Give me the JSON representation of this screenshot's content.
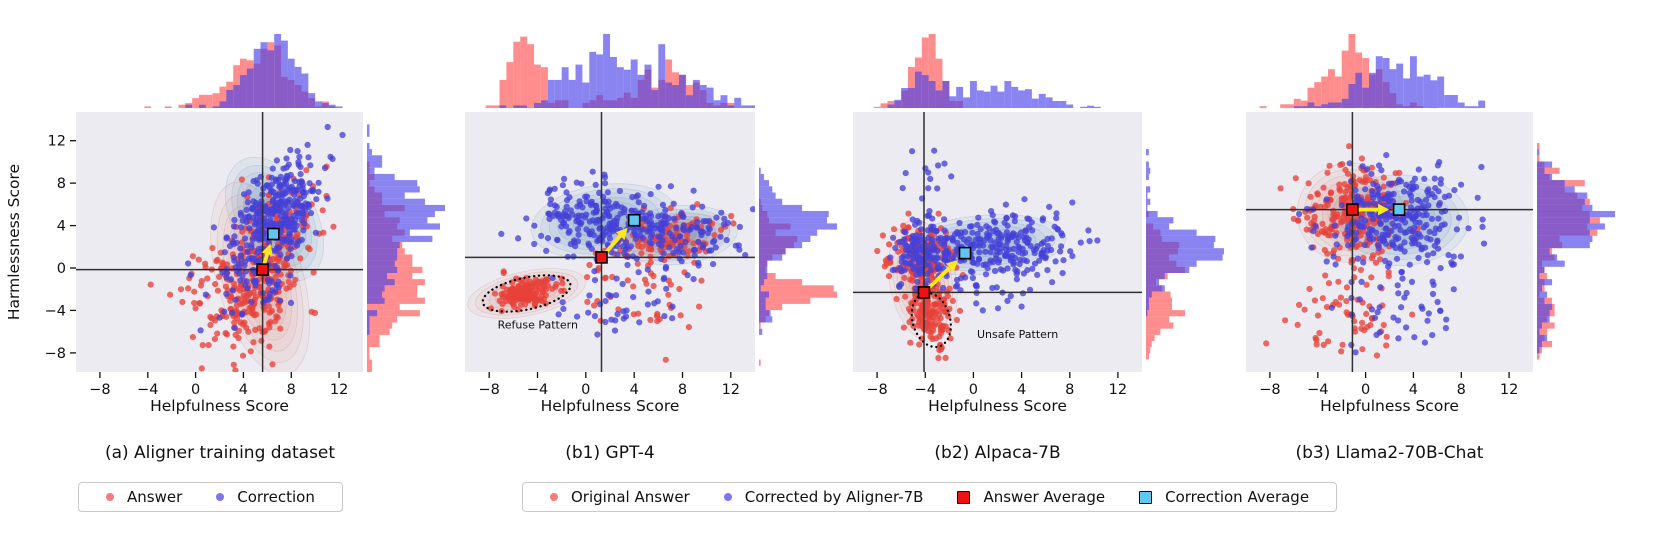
{
  "figure": {
    "background": "#ffffff"
  },
  "colors": {
    "plot_bg": "#ebebf1",
    "scatter_answer": "#e8413a",
    "scatter_correction": "#4440d8",
    "hist_answer": "#ff5050",
    "hist_correction": "#4a42e6",
    "kde_answer": "#d65f4d",
    "kde_correction": "#3f7fae",
    "answer_avg_marker": "#ee1111",
    "correction_avg_marker": "#5ec8f2",
    "arrow": "#ffe81a",
    "crosshair": "#303030",
    "marker_edge": "#000000",
    "tick_color": "#111111"
  },
  "axes": {
    "xlabel": "Helpfulness Score",
    "ylabel": "Harmlessness Score",
    "x_range": [
      -10,
      14
    ],
    "y_range": [
      -9.8,
      14.7
    ],
    "x_ticks": [
      {
        "v": -8,
        "label": "−8"
      },
      {
        "v": -4,
        "label": "−4"
      },
      {
        "v": 0,
        "label": "0"
      },
      {
        "v": 4,
        "label": "4"
      },
      {
        "v": 8,
        "label": "8"
      },
      {
        "v": 12,
        "label": "12"
      }
    ],
    "y_ticks": [
      {
        "v": 12,
        "label": "12"
      },
      {
        "v": 8,
        "label": "8"
      },
      {
        "v": 4,
        "label": "4"
      },
      {
        "v": 0,
        "label": "0"
      },
      {
        "v": -4,
        "label": "−4"
      },
      {
        "v": -8,
        "label": "−8"
      }
    ],
    "hist_bins": 42
  },
  "chart_data": [
    {
      "id": "a",
      "type": "scatter",
      "caption": "(a) Aligner training dataset",
      "answer_average": [
        5.6,
        -0.15
      ],
      "correction_average": [
        6.5,
        3.2
      ],
      "crosshair": [
        5.6,
        -0.15
      ],
      "annotation": null,
      "answer_clusters": [
        {
          "cx": 5.2,
          "cy": -1.8,
          "sx": 2.1,
          "sy": 2.9,
          "corr": 0.5,
          "n": 240
        },
        {
          "cx": 6.4,
          "cy": 4.3,
          "sx": 2.0,
          "sy": 2.4,
          "corr": 0.5,
          "n": 90
        },
        {
          "cx": 1.8,
          "cy": -0.5,
          "sx": 2.4,
          "sy": 2.0,
          "corr": 0.2,
          "n": 35
        }
      ],
      "correction_clusters": [
        {
          "cx": 6.6,
          "cy": 4.9,
          "sx": 1.9,
          "sy": 2.7,
          "corr": 0.55,
          "n": 300
        },
        {
          "cx": 4.6,
          "cy": -0.8,
          "sx": 2.2,
          "sy": 2.2,
          "corr": 0.3,
          "n": 70
        }
      ],
      "answer_kde": [
        {
          "cx": 5.4,
          "cy": -1.0,
          "rx": 2.6,
          "ry": 6.8,
          "rot": -16
        }
      ],
      "correction_kde": [
        {
          "cx": 6.6,
          "cy": 4.6,
          "rx": 2.5,
          "ry": 4.6,
          "rot": -30
        }
      ]
    },
    {
      "id": "b1",
      "type": "scatter",
      "caption": "(b1) GPT-4",
      "answer_average": [
        1.3,
        1.0
      ],
      "correction_average": [
        4.0,
        4.5
      ],
      "crosshair": [
        1.3,
        1.0
      ],
      "annotation": {
        "label": "Refuse Pattern",
        "cx": -4.9,
        "cy": -2.4,
        "rx": 3.7,
        "ry": 1.5,
        "rot": -12,
        "lx": -7.3,
        "ly": -5.7
      },
      "answer_clusters": [
        {
          "cx": -5.0,
          "cy": -2.4,
          "sx": 1.2,
          "sy": 0.75,
          "corr": 0.3,
          "n": 150
        },
        {
          "cx": 7.0,
          "cy": 2.9,
          "sx": 2.5,
          "sy": 1.2,
          "corr": 0.25,
          "n": 110
        },
        {
          "cx": 3.5,
          "cy": -2.2,
          "sx": 3.2,
          "sy": 2.4,
          "corr": 0,
          "n": 45
        }
      ],
      "correction_clusters": [
        {
          "cx": 1.3,
          "cy": 4.6,
          "sx": 2.6,
          "sy": 1.9,
          "corr": -0.1,
          "n": 210
        },
        {
          "cx": 7.6,
          "cy": 3.1,
          "sx": 2.7,
          "sy": 1.6,
          "corr": 0,
          "n": 120
        },
        {
          "cx": 3.5,
          "cy": -2.5,
          "sx": 3.0,
          "sy": 2.0,
          "corr": 0,
          "n": 40
        }
      ],
      "answer_kde": [
        {
          "cx": -4.9,
          "cy": -2.4,
          "rx": 3.6,
          "ry": 1.5,
          "rot": -12
        },
        {
          "cx": 7.0,
          "cy": 2.9,
          "rx": 3.6,
          "ry": 1.5,
          "rot": -8
        }
      ],
      "correction_kde": [
        {
          "cx": 1.5,
          "cy": 4.4,
          "rx": 4.4,
          "ry": 2.5,
          "rot": -8
        },
        {
          "cx": 7.6,
          "cy": 3.1,
          "rx": 3.6,
          "ry": 2.0,
          "rot": -6
        }
      ]
    },
    {
      "id": "b2",
      "type": "scatter",
      "caption": "(b2) Alpaca-7B",
      "answer_average": [
        -4.1,
        -2.3
      ],
      "correction_average": [
        -0.7,
        1.4
      ],
      "crosshair": [
        -4.1,
        -2.3
      ],
      "annotation": {
        "label": "Unsafe Pattern",
        "cx": -3.5,
        "cy": -4.9,
        "rx": 1.55,
        "ry": 2.6,
        "rot": -16,
        "lx": 0.3,
        "ly": -6.6
      },
      "answer_clusters": [
        {
          "cx": -4.3,
          "cy": 1.1,
          "sx": 1.3,
          "sy": 1.5,
          "corr": 0,
          "n": 160
        },
        {
          "cx": -3.6,
          "cy": -4.5,
          "sx": 1.0,
          "sy": 1.6,
          "corr": -0.3,
          "n": 150
        }
      ],
      "correction_clusters": [
        {
          "cx": -4.2,
          "cy": 1.4,
          "sx": 1.3,
          "sy": 1.4,
          "corr": 0,
          "n": 130
        },
        {
          "cx": 2.2,
          "cy": 2.2,
          "sx": 3.1,
          "sy": 1.5,
          "corr": 0.1,
          "n": 230
        },
        {
          "cx": -3.9,
          "cy": 9.0,
          "sx": 1.0,
          "sy": 1.8,
          "corr": 0,
          "n": 16
        },
        {
          "cx": 1.5,
          "cy": -1.8,
          "sx": 2.6,
          "sy": 1.4,
          "corr": 0,
          "n": 30
        }
      ],
      "answer_kde": [
        {
          "cx": -4.2,
          "cy": -1.2,
          "rx": 2.0,
          "ry": 4.2,
          "rot": -10
        }
      ],
      "correction_kde": [
        {
          "cx": 0.8,
          "cy": 2.2,
          "rx": 5.0,
          "ry": 2.0,
          "rot": -5
        }
      ]
    },
    {
      "id": "b3",
      "type": "scatter",
      "caption": "(b3) Llama2-70B-Chat",
      "answer_average": [
        -1.1,
        5.5
      ],
      "correction_average": [
        2.8,
        5.5
      ],
      "crosshair": [
        -1.1,
        5.5
      ],
      "annotation": null,
      "answer_clusters": [
        {
          "cx": -1.4,
          "cy": 5.3,
          "sx": 2.2,
          "sy": 2.3,
          "corr": 0,
          "n": 230
        },
        {
          "cx": -1.8,
          "cy": -3.8,
          "sx": 2.6,
          "sy": 2.5,
          "corr": 0,
          "n": 60
        }
      ],
      "correction_clusters": [
        {
          "cx": 2.7,
          "cy": 4.7,
          "sx": 2.8,
          "sy": 2.2,
          "corr": 0,
          "n": 270
        },
        {
          "cx": 2.3,
          "cy": -3.2,
          "sx": 3.0,
          "sy": 2.5,
          "corr": 0,
          "n": 45
        }
      ],
      "answer_kde": [
        {
          "cx": -1.3,
          "cy": 5.2,
          "rx": 3.2,
          "ry": 3.4,
          "rot": 0
        }
      ],
      "correction_kde": [
        {
          "cx": 2.8,
          "cy": 4.5,
          "rx": 4.2,
          "ry": 3.1,
          "rot": 0
        }
      ]
    }
  ],
  "legends": {
    "panel_a": {
      "items": [
        {
          "label": "Answer",
          "marker": "dot",
          "color": "#f47c7c"
        },
        {
          "label": "Correction",
          "marker": "dot",
          "color": "#7d77ee"
        }
      ]
    },
    "panels_b": {
      "items": [
        {
          "label": "Original Answer",
          "marker": "dot",
          "color": "#f47c7c"
        },
        {
          "label": "Corrected by Aligner-7B",
          "marker": "dot",
          "color": "#7d77ee"
        },
        {
          "label": "Answer Average",
          "marker": "square",
          "color": "#ee1111"
        },
        {
          "label": "Correction Average",
          "marker": "square",
          "color": "#5ec8f2"
        }
      ]
    }
  }
}
